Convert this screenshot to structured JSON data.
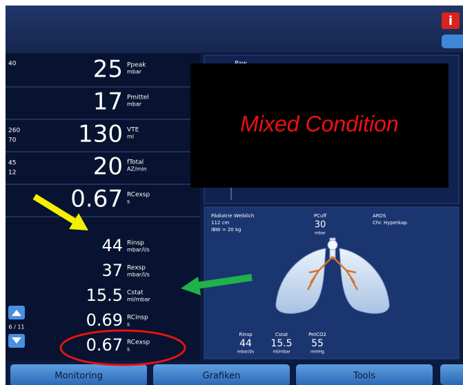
{
  "top_params": [
    {
      "limits": [
        "40"
      ],
      "value": "25",
      "name": "Ppeak",
      "unit": "mbar"
    },
    {
      "limits": [],
      "value": "17",
      "name": "Pmittel",
      "unit": "mbar"
    },
    {
      "limits": [
        "260",
        "70"
      ],
      "value": "130",
      "name": "VTE",
      "unit": "ml"
    },
    {
      "limits": [
        "45",
        "12"
      ],
      "value": "20",
      "name": "fTotal",
      "unit": "AZ/min"
    },
    {
      "limits": [],
      "value": "0.67",
      "name": "RCexsp",
      "unit": "s"
    }
  ],
  "lower_params": [
    {
      "value": "44",
      "name": "Rinsp",
      "unit": "mbar/l/s"
    },
    {
      "value": "37",
      "name": "Rexsp",
      "unit": "mbar/l/s"
    },
    {
      "value": "15.5",
      "name": "Cstat",
      "unit": "ml/mbar"
    },
    {
      "value": "0.69",
      "name": "RCinsp",
      "unit": "s"
    },
    {
      "value": "0.67",
      "name": "RCexsp",
      "unit": "s"
    }
  ],
  "page_indicator": "6 / 11",
  "graph_label": "Paw",
  "overlay_text": "Mixed Condition",
  "patient": {
    "info": [
      "Pädiatrie Weiblich",
      "112 cm",
      "IBW = 20 kg"
    ],
    "cuff_name": "PCuff",
    "cuff_value": "30",
    "cuff_unit": "mbar",
    "diagnosis": [
      "ARDS",
      "Chr. Hyperkap."
    ],
    "readings": [
      {
        "name": "Rinsp",
        "value": "44",
        "unit": "mbar/l/s"
      },
      {
        "name": "Cstat",
        "value": "15.5",
        "unit": "ml/mbar"
      },
      {
        "name": "PetCO2",
        "value": "55",
        "unit": "mmHg"
      }
    ]
  },
  "tabs": [
    "Monitoring",
    "Grafiken",
    "Tools"
  ],
  "info_icon": "i"
}
